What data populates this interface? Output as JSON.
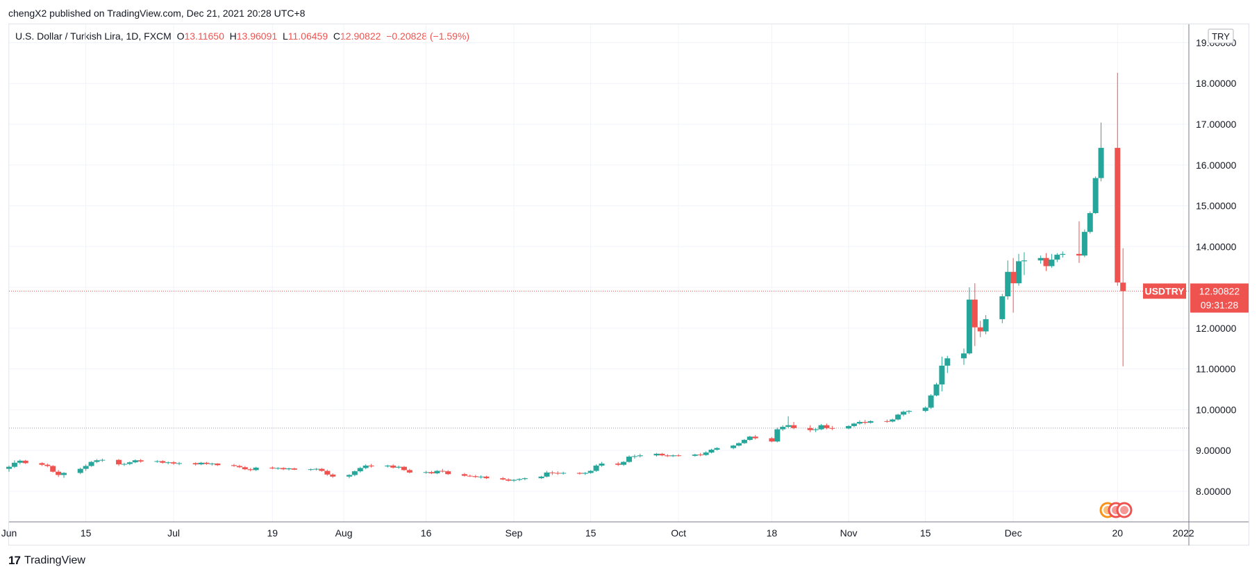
{
  "publisher_line": "chengX2 published on TradingView.com, Dec 21, 2021 20:28 UTC+8",
  "legend": {
    "symbol": "U.S. Dollar / Turkish Lira, 1D, FXCM",
    "o_label": "O",
    "o": "13.11650",
    "h_label": "H",
    "h": "13.96091",
    "l_label": "L",
    "l": "11.06459",
    "c_label": "C",
    "c": "12.90822",
    "change": "−0.20828 (−1.59%)"
  },
  "footer_brand": "TradingView",
  "colors": {
    "up": "#26a69a",
    "down": "#ef5350",
    "grid": "#f0f3fa",
    "axis_text": "#131722"
  },
  "chart_data": {
    "type": "candlestick",
    "title": "U.S. Dollar / Turkish Lira, 1D, FXCM",
    "currency": "TRY",
    "symbol_tag": "USDTRY",
    "last_price_label": "12.90822",
    "countdown": "09:31:28",
    "last_price": 12.90822,
    "reference_line": 9.55,
    "ylim": [
      7.25,
      19.45
    ],
    "y_ticks": [
      8,
      9,
      10,
      11,
      12,
      13,
      14,
      15,
      16,
      17,
      18,
      19
    ],
    "y_tick_labels": [
      "8.00000",
      "9.00000",
      "10.00000",
      "11.00000",
      "12.00000",
      "13.00000",
      "14.00000",
      "15.00000",
      "16.00000",
      "17.00000",
      "18.00000",
      "19.00000"
    ],
    "x_ticks": [
      {
        "date": "2021-06-01",
        "label": "Jun"
      },
      {
        "date": "2021-06-15",
        "label": "15"
      },
      {
        "date": "2021-07-01",
        "label": "Jul"
      },
      {
        "date": "2021-07-19",
        "label": "19"
      },
      {
        "date": "2021-08-01",
        "label": "Aug"
      },
      {
        "date": "2021-08-16",
        "label": "16"
      },
      {
        "date": "2021-09-01",
        "label": "Sep"
      },
      {
        "date": "2021-09-15",
        "label": "15"
      },
      {
        "date": "2021-10-01",
        "label": "Oct"
      },
      {
        "date": "2021-10-18",
        "label": "18"
      },
      {
        "date": "2021-11-01",
        "label": "Nov"
      },
      {
        "date": "2021-11-15",
        "label": "15"
      },
      {
        "date": "2021-12-01",
        "label": "Dec"
      },
      {
        "date": "2021-12-20",
        "label": "20"
      },
      {
        "date": "2022-01-01",
        "label": "2022"
      }
    ],
    "x_range": [
      "2021-06-01",
      "2022-01-02"
    ],
    "candles": [
      {
        "d": "2021-06-01",
        "o": 8.55,
        "h": 8.63,
        "l": 8.48,
        "c": 8.6
      },
      {
        "d": "2021-06-02",
        "o": 8.6,
        "h": 8.76,
        "l": 8.57,
        "c": 8.7
      },
      {
        "d": "2021-06-03",
        "o": 8.7,
        "h": 8.78,
        "l": 8.66,
        "c": 8.75
      },
      {
        "d": "2021-06-04",
        "o": 8.75,
        "h": 8.77,
        "l": 8.67,
        "c": 8.69
      },
      {
        "d": "2021-06-07",
        "o": 8.69,
        "h": 8.71,
        "l": 8.62,
        "c": 8.65
      },
      {
        "d": "2021-06-08",
        "o": 8.65,
        "h": 8.68,
        "l": 8.59,
        "c": 8.62
      },
      {
        "d": "2021-06-09",
        "o": 8.62,
        "h": 8.64,
        "l": 8.46,
        "c": 8.48
      },
      {
        "d": "2021-06-10",
        "o": 8.48,
        "h": 8.52,
        "l": 8.35,
        "c": 8.4
      },
      {
        "d": "2021-06-11",
        "o": 8.4,
        "h": 8.47,
        "l": 8.33,
        "c": 8.45
      },
      {
        "d": "2021-06-14",
        "o": 8.45,
        "h": 8.58,
        "l": 8.42,
        "c": 8.55
      },
      {
        "d": "2021-06-15",
        "o": 8.55,
        "h": 8.66,
        "l": 8.5,
        "c": 8.62
      },
      {
        "d": "2021-06-16",
        "o": 8.62,
        "h": 8.74,
        "l": 8.6,
        "c": 8.72
      },
      {
        "d": "2021-06-17",
        "o": 8.72,
        "h": 8.79,
        "l": 8.69,
        "c": 8.76
      },
      {
        "d": "2021-06-18",
        "o": 8.76,
        "h": 8.8,
        "l": 8.72,
        "c": 8.77
      },
      {
        "d": "2021-06-21",
        "o": 8.77,
        "h": 8.79,
        "l": 8.62,
        "c": 8.66
      },
      {
        "d": "2021-06-22",
        "o": 8.66,
        "h": 8.7,
        "l": 8.62,
        "c": 8.67
      },
      {
        "d": "2021-06-23",
        "o": 8.67,
        "h": 8.73,
        "l": 8.64,
        "c": 8.71
      },
      {
        "d": "2021-06-24",
        "o": 8.71,
        "h": 8.78,
        "l": 8.69,
        "c": 8.76
      },
      {
        "d": "2021-06-25",
        "o": 8.76,
        "h": 8.79,
        "l": 8.7,
        "c": 8.73
      },
      {
        "d": "2021-06-28",
        "o": 8.73,
        "h": 8.76,
        "l": 8.7,
        "c": 8.74
      },
      {
        "d": "2021-06-29",
        "o": 8.74,
        "h": 8.76,
        "l": 8.68,
        "c": 8.7
      },
      {
        "d": "2021-06-30",
        "o": 8.7,
        "h": 8.73,
        "l": 8.66,
        "c": 8.71
      },
      {
        "d": "2021-07-01",
        "o": 8.71,
        "h": 8.74,
        "l": 8.65,
        "c": 8.68
      },
      {
        "d": "2021-07-02",
        "o": 8.68,
        "h": 8.72,
        "l": 8.64,
        "c": 8.69
      },
      {
        "d": "2021-07-05",
        "o": 8.69,
        "h": 8.71,
        "l": 8.63,
        "c": 8.66
      },
      {
        "d": "2021-07-06",
        "o": 8.66,
        "h": 8.72,
        "l": 8.64,
        "c": 8.7
      },
      {
        "d": "2021-07-07",
        "o": 8.7,
        "h": 8.72,
        "l": 8.65,
        "c": 8.67
      },
      {
        "d": "2021-07-08",
        "o": 8.67,
        "h": 8.7,
        "l": 8.63,
        "c": 8.68
      },
      {
        "d": "2021-07-09",
        "o": 8.68,
        "h": 8.69,
        "l": 8.62,
        "c": 8.64
      },
      {
        "d": "2021-07-12",
        "o": 8.64,
        "h": 8.67,
        "l": 8.6,
        "c": 8.62
      },
      {
        "d": "2021-07-13",
        "o": 8.62,
        "h": 8.65,
        "l": 8.57,
        "c": 8.59
      },
      {
        "d": "2021-07-14",
        "o": 8.59,
        "h": 8.62,
        "l": 8.52,
        "c": 8.54
      },
      {
        "d": "2021-07-15",
        "o": 8.54,
        "h": 8.57,
        "l": 8.49,
        "c": 8.52
      },
      {
        "d": "2021-07-16",
        "o": 8.52,
        "h": 8.6,
        "l": 8.5,
        "c": 8.58
      },
      {
        "d": "2021-07-19",
        "o": 8.58,
        "h": 8.61,
        "l": 8.54,
        "c": 8.56
      },
      {
        "d": "2021-07-20",
        "o": 8.56,
        "h": 8.59,
        "l": 8.53,
        "c": 8.57
      },
      {
        "d": "2021-07-21",
        "o": 8.57,
        "h": 8.59,
        "l": 8.52,
        "c": 8.54
      },
      {
        "d": "2021-07-22",
        "o": 8.54,
        "h": 8.58,
        "l": 8.51,
        "c": 8.56
      },
      {
        "d": "2021-07-23",
        "o": 8.56,
        "h": 8.58,
        "l": 8.52,
        "c": 8.53
      },
      {
        "d": "2021-07-26",
        "o": 8.53,
        "h": 8.56,
        "l": 8.5,
        "c": 8.54
      },
      {
        "d": "2021-07-27",
        "o": 8.54,
        "h": 8.57,
        "l": 8.51,
        "c": 8.55
      },
      {
        "d": "2021-07-28",
        "o": 8.55,
        "h": 8.57,
        "l": 8.48,
        "c": 8.5
      },
      {
        "d": "2021-07-29",
        "o": 8.5,
        "h": 8.53,
        "l": 8.38,
        "c": 8.41
      },
      {
        "d": "2021-07-30",
        "o": 8.41,
        "h": 8.44,
        "l": 8.33,
        "c": 8.36
      },
      {
        "d": "2021-08-02",
        "o": 8.36,
        "h": 8.42,
        "l": 8.32,
        "c": 8.4
      },
      {
        "d": "2021-08-03",
        "o": 8.4,
        "h": 8.51,
        "l": 8.37,
        "c": 8.49
      },
      {
        "d": "2021-08-04",
        "o": 8.49,
        "h": 8.6,
        "l": 8.46,
        "c": 8.57
      },
      {
        "d": "2021-08-05",
        "o": 8.57,
        "h": 8.66,
        "l": 8.54,
        "c": 8.63
      },
      {
        "d": "2021-08-06",
        "o": 8.63,
        "h": 8.67,
        "l": 8.58,
        "c": 8.61
      },
      {
        "d": "2021-08-09",
        "o": 8.61,
        "h": 8.65,
        "l": 8.58,
        "c": 8.63
      },
      {
        "d": "2021-08-10",
        "o": 8.63,
        "h": 8.66,
        "l": 8.56,
        "c": 8.58
      },
      {
        "d": "2021-08-11",
        "o": 8.58,
        "h": 8.63,
        "l": 8.55,
        "c": 8.6
      },
      {
        "d": "2021-08-12",
        "o": 8.6,
        "h": 8.62,
        "l": 8.5,
        "c": 8.52
      },
      {
        "d": "2021-08-13",
        "o": 8.52,
        "h": 8.55,
        "l": 8.44,
        "c": 8.46
      },
      {
        "d": "2021-08-16",
        "o": 8.46,
        "h": 8.5,
        "l": 8.43,
        "c": 8.47
      },
      {
        "d": "2021-08-17",
        "o": 8.47,
        "h": 8.5,
        "l": 8.42,
        "c": 8.44
      },
      {
        "d": "2021-08-18",
        "o": 8.44,
        "h": 8.52,
        "l": 8.42,
        "c": 8.5
      },
      {
        "d": "2021-08-19",
        "o": 8.5,
        "h": 8.55,
        "l": 8.46,
        "c": 8.49
      },
      {
        "d": "2021-08-20",
        "o": 8.49,
        "h": 8.52,
        "l": 8.4,
        "c": 8.42
      },
      {
        "d": "2021-08-23",
        "o": 8.42,
        "h": 8.45,
        "l": 8.36,
        "c": 8.38
      },
      {
        "d": "2021-08-24",
        "o": 8.38,
        "h": 8.41,
        "l": 8.35,
        "c": 8.37
      },
      {
        "d": "2021-08-25",
        "o": 8.37,
        "h": 8.4,
        "l": 8.33,
        "c": 8.35
      },
      {
        "d": "2021-08-26",
        "o": 8.35,
        "h": 8.39,
        "l": 8.31,
        "c": 8.36
      },
      {
        "d": "2021-08-27",
        "o": 8.36,
        "h": 8.38,
        "l": 8.3,
        "c": 8.32
      },
      {
        "d": "2021-08-30",
        "o": 8.32,
        "h": 8.35,
        "l": 8.27,
        "c": 8.29
      },
      {
        "d": "2021-08-31",
        "o": 8.29,
        "h": 8.32,
        "l": 8.24,
        "c": 8.26
      },
      {
        "d": "2021-09-01",
        "o": 8.26,
        "h": 8.3,
        "l": 8.23,
        "c": 8.28
      },
      {
        "d": "2021-09-02",
        "o": 8.28,
        "h": 8.32,
        "l": 8.25,
        "c": 8.3
      },
      {
        "d": "2021-09-03",
        "o": 8.3,
        "h": 8.34,
        "l": 8.27,
        "c": 8.32
      },
      {
        "d": "2021-09-06",
        "o": 8.32,
        "h": 8.38,
        "l": 8.3,
        "c": 8.36
      },
      {
        "d": "2021-09-07",
        "o": 8.36,
        "h": 8.5,
        "l": 8.34,
        "c": 8.46
      },
      {
        "d": "2021-09-08",
        "o": 8.46,
        "h": 8.5,
        "l": 8.4,
        "c": 8.45
      },
      {
        "d": "2021-09-09",
        "o": 8.45,
        "h": 8.49,
        "l": 8.4,
        "c": 8.44
      },
      {
        "d": "2021-09-10",
        "o": 8.44,
        "h": 8.48,
        "l": 8.41,
        "c": 8.45
      },
      {
        "d": "2021-09-13",
        "o": 8.45,
        "h": 8.47,
        "l": 8.41,
        "c": 8.43
      },
      {
        "d": "2021-09-14",
        "o": 8.43,
        "h": 8.47,
        "l": 8.4,
        "c": 8.45
      },
      {
        "d": "2021-09-15",
        "o": 8.45,
        "h": 8.52,
        "l": 8.43,
        "c": 8.5
      },
      {
        "d": "2021-09-16",
        "o": 8.5,
        "h": 8.66,
        "l": 8.48,
        "c": 8.63
      },
      {
        "d": "2021-09-17",
        "o": 8.63,
        "h": 8.72,
        "l": 8.6,
        "c": 8.68
      },
      {
        "d": "2021-09-20",
        "o": 8.68,
        "h": 8.72,
        "l": 8.62,
        "c": 8.65
      },
      {
        "d": "2021-09-21",
        "o": 8.65,
        "h": 8.74,
        "l": 8.62,
        "c": 8.72
      },
      {
        "d": "2021-09-22",
        "o": 8.72,
        "h": 8.88,
        "l": 8.7,
        "c": 8.85
      },
      {
        "d": "2021-09-23",
        "o": 8.85,
        "h": 8.9,
        "l": 8.8,
        "c": 8.86
      },
      {
        "d": "2021-09-24",
        "o": 8.86,
        "h": 8.92,
        "l": 8.83,
        "c": 8.88
      },
      {
        "d": "2021-09-27",
        "o": 8.88,
        "h": 8.94,
        "l": 8.85,
        "c": 8.92
      },
      {
        "d": "2021-09-28",
        "o": 8.92,
        "h": 8.94,
        "l": 8.86,
        "c": 8.88
      },
      {
        "d": "2021-09-29",
        "o": 8.88,
        "h": 8.91,
        "l": 8.84,
        "c": 8.86
      },
      {
        "d": "2021-09-30",
        "o": 8.86,
        "h": 8.9,
        "l": 8.84,
        "c": 8.88
      },
      {
        "d": "2021-10-01",
        "o": 8.88,
        "h": 8.91,
        "l": 8.85,
        "c": 8.87
      },
      {
        "d": "2021-10-04",
        "o": 8.87,
        "h": 8.92,
        "l": 8.85,
        "c": 8.9
      },
      {
        "d": "2021-10-05",
        "o": 8.9,
        "h": 8.94,
        "l": 8.86,
        "c": 8.89
      },
      {
        "d": "2021-10-06",
        "o": 8.89,
        "h": 8.98,
        "l": 8.87,
        "c": 8.95
      },
      {
        "d": "2021-10-07",
        "o": 8.95,
        "h": 9.04,
        "l": 8.93,
        "c": 9.02
      },
      {
        "d": "2021-10-08",
        "o": 9.02,
        "h": 9.08,
        "l": 9.0,
        "c": 9.06
      },
      {
        "d": "2021-10-11",
        "o": 9.06,
        "h": 9.14,
        "l": 9.03,
        "c": 9.12
      },
      {
        "d": "2021-10-12",
        "o": 9.12,
        "h": 9.2,
        "l": 9.1,
        "c": 9.18
      },
      {
        "d": "2021-10-13",
        "o": 9.18,
        "h": 9.28,
        "l": 9.16,
        "c": 9.26
      },
      {
        "d": "2021-10-14",
        "o": 9.26,
        "h": 9.36,
        "l": 9.24,
        "c": 9.34
      },
      {
        "d": "2021-10-15",
        "o": 9.34,
        "h": 9.38,
        "l": 9.27,
        "c": 9.3
      },
      {
        "d": "2021-10-18",
        "o": 9.3,
        "h": 9.33,
        "l": 9.2,
        "c": 9.22
      },
      {
        "d": "2021-10-19",
        "o": 9.22,
        "h": 9.56,
        "l": 9.2,
        "c": 9.52
      },
      {
        "d": "2021-10-20",
        "o": 9.52,
        "h": 9.62,
        "l": 9.48,
        "c": 9.58
      },
      {
        "d": "2021-10-21",
        "o": 9.58,
        "h": 9.84,
        "l": 9.55,
        "c": 9.62
      },
      {
        "d": "2021-10-22",
        "o": 9.62,
        "h": 9.7,
        "l": 9.52,
        "c": 9.55
      },
      {
        "d": "2021-10-25",
        "o": 9.55,
        "h": 9.62,
        "l": 9.45,
        "c": 9.5
      },
      {
        "d": "2021-10-26",
        "o": 9.5,
        "h": 9.55,
        "l": 9.45,
        "c": 9.52
      },
      {
        "d": "2021-10-27",
        "o": 9.52,
        "h": 9.65,
        "l": 9.5,
        "c": 9.62
      },
      {
        "d": "2021-10-28",
        "o": 9.62,
        "h": 9.66,
        "l": 9.52,
        "c": 9.55
      },
      {
        "d": "2021-10-29",
        "o": 9.55,
        "h": 9.6,
        "l": 9.5,
        "c": 9.54
      },
      {
        "d": "2021-11-01",
        "o": 9.54,
        "h": 9.62,
        "l": 9.52,
        "c": 9.6
      },
      {
        "d": "2021-11-02",
        "o": 9.6,
        "h": 9.68,
        "l": 9.57,
        "c": 9.66
      },
      {
        "d": "2021-11-03",
        "o": 9.66,
        "h": 9.74,
        "l": 9.63,
        "c": 9.7
      },
      {
        "d": "2021-11-04",
        "o": 9.7,
        "h": 9.75,
        "l": 9.64,
        "c": 9.68
      },
      {
        "d": "2021-11-05",
        "o": 9.68,
        "h": 9.74,
        "l": 9.66,
        "c": 9.72
      },
      {
        "d": "2021-11-08",
        "o": 9.72,
        "h": 9.76,
        "l": 9.68,
        "c": 9.71
      },
      {
        "d": "2021-11-09",
        "o": 9.71,
        "h": 9.78,
        "l": 9.69,
        "c": 9.76
      },
      {
        "d": "2021-11-10",
        "o": 9.76,
        "h": 9.9,
        "l": 9.74,
        "c": 9.88
      },
      {
        "d": "2021-11-11",
        "o": 9.88,
        "h": 9.98,
        "l": 9.84,
        "c": 9.95
      },
      {
        "d": "2021-11-12",
        "o": 9.95,
        "h": 9.99,
        "l": 9.9,
        "c": 9.97
      },
      {
        "d": "2021-11-15",
        "o": 9.97,
        "h": 10.08,
        "l": 9.94,
        "c": 10.05
      },
      {
        "d": "2021-11-16",
        "o": 10.05,
        "h": 10.38,
        "l": 10.02,
        "c": 10.35
      },
      {
        "d": "2021-11-17",
        "o": 10.35,
        "h": 10.66,
        "l": 10.33,
        "c": 10.62
      },
      {
        "d": "2021-11-18",
        "o": 10.62,
        "h": 11.3,
        "l": 10.45,
        "c": 11.08
      },
      {
        "d": "2021-11-19",
        "o": 11.08,
        "h": 11.32,
        "l": 10.9,
        "c": 11.26
      },
      {
        "d": "2021-11-22",
        "o": 11.26,
        "h": 11.5,
        "l": 11.1,
        "c": 11.38
      },
      {
        "d": "2021-11-23",
        "o": 11.38,
        "h": 13.0,
        "l": 11.35,
        "c": 12.7
      },
      {
        "d": "2021-11-24",
        "o": 12.7,
        "h": 13.1,
        "l": 11.56,
        "c": 12.02
      },
      {
        "d": "2021-11-25",
        "o": 12.02,
        "h": 12.18,
        "l": 11.78,
        "c": 11.92
      },
      {
        "d": "2021-11-26",
        "o": 11.92,
        "h": 12.32,
        "l": 11.85,
        "c": 12.22
      },
      {
        "d": "2021-11-29",
        "o": 12.22,
        "h": 12.84,
        "l": 12.12,
        "c": 12.78
      },
      {
        "d": "2021-11-30",
        "o": 12.78,
        "h": 13.66,
        "l": 12.7,
        "c": 13.38
      },
      {
        "d": "2021-12-01",
        "o": 13.38,
        "h": 13.72,
        "l": 12.38,
        "c": 13.1
      },
      {
        "d": "2021-12-02",
        "o": 13.1,
        "h": 13.82,
        "l": 13.04,
        "c": 13.64
      },
      {
        "d": "2021-12-03",
        "o": 13.64,
        "h": 13.86,
        "l": 13.3,
        "c": 13.66
      },
      {
        "d": "2021-12-06",
        "o": 13.66,
        "h": 13.78,
        "l": 13.58,
        "c": 13.72
      },
      {
        "d": "2021-12-07",
        "o": 13.72,
        "h": 13.84,
        "l": 13.4,
        "c": 13.52
      },
      {
        "d": "2021-12-08",
        "o": 13.52,
        "h": 13.82,
        "l": 13.48,
        "c": 13.68
      },
      {
        "d": "2021-12-09",
        "o": 13.68,
        "h": 13.84,
        "l": 13.62,
        "c": 13.8
      },
      {
        "d": "2021-12-10",
        "o": 13.8,
        "h": 13.88,
        "l": 13.73,
        "c": 13.82
      },
      {
        "d": "2021-12-13",
        "o": 13.82,
        "h": 14.62,
        "l": 13.6,
        "c": 13.78
      },
      {
        "d": "2021-12-14",
        "o": 13.78,
        "h": 14.42,
        "l": 13.74,
        "c": 14.36
      },
      {
        "d": "2021-12-15",
        "o": 14.36,
        "h": 14.86,
        "l": 14.32,
        "c": 14.82
      },
      {
        "d": "2021-12-16",
        "o": 14.82,
        "h": 15.72,
        "l": 14.8,
        "c": 15.68
      },
      {
        "d": "2021-12-17",
        "o": 15.68,
        "h": 17.04,
        "l": 15.6,
        "c": 16.42
      },
      {
        "d": "2021-12-20",
        "o": 16.42,
        "h": 18.26,
        "l": 13.04,
        "c": 13.12
      },
      {
        "d": "2021-12-21",
        "o": 13.1165,
        "h": 13.96091,
        "l": 11.06459,
        "c": 12.90822
      }
    ]
  }
}
